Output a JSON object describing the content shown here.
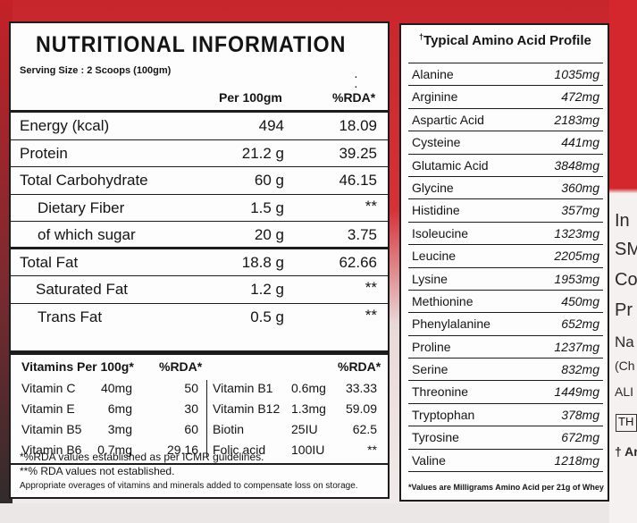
{
  "nutrition": {
    "title": "NUTRITIONAL INFORMATION",
    "serving": "Serving Size : 2 Scoops (100gm)",
    "dots": ". .",
    "col_per": "Per 100gm",
    "col_rda": "%RDA*",
    "rows": [
      {
        "name": "Energy (kcal)",
        "value": "494",
        "rda": "18.09"
      },
      {
        "name": "Protein",
        "value": "21.2 g",
        "rda": "39.25"
      },
      {
        "name": "Total Carbohydrate",
        "value": "60 g",
        "rda": "46.15"
      },
      {
        "name": "Dietary Fiber",
        "value": "1.5 g",
        "rda": "**"
      },
      {
        "name": "of which sugar",
        "value": "20 g",
        "rda": "3.75"
      },
      {
        "name": "Total Fat",
        "value": "18.8 g",
        "rda": "62.66"
      },
      {
        "name": "Saturated Fat",
        "value": "1.2 g",
        "rda": "**"
      },
      {
        "name": "Trans Fat",
        "value": "0.5 g",
        "rda": "**"
      }
    ]
  },
  "vitamins": {
    "header": "Vitamins Per 100g*",
    "rda_header_1": "%RDA*",
    "rda_header_2": "%RDA*",
    "rows": [
      {
        "n1": "Vitamin C",
        "a1": "40mg",
        "r1": "50",
        "n2": "Vitamin B1",
        "a2": "0.6mg",
        "r2": "33.33"
      },
      {
        "n1": "Vitamin E",
        "a1": "6mg",
        "r1": "30",
        "n2": "Vitamin B12",
        "a2": "1.3mg",
        "r2": "59.09"
      },
      {
        "n1": "Vitamin B5",
        "a1": "3mg",
        "r1": "60",
        "n2": "Biotin",
        "a2": "25IU",
        "r2": "62.5"
      },
      {
        "n1": "Vitamin B6",
        "a1": "0.7mg",
        "r1": "29.16",
        "n2": "Folic acid",
        "a2": "100IU",
        "r2": "**"
      }
    ]
  },
  "notes": {
    "n1": "*%RDA values established as per ICMR guidelines.",
    "n2": "**% RDA values not established.",
    "n3": "Appropriate overages of vitamins and minerals added to compensate loss on storage."
  },
  "amino": {
    "title_mark": "†",
    "title": "Typical Amino Acid Profile",
    "rows": [
      {
        "name": "Alanine",
        "value": "1035mg"
      },
      {
        "name": "Arginine",
        "value": "472mg"
      },
      {
        "name": "Aspartic Acid",
        "value": "2183mg"
      },
      {
        "name": "Cysteine",
        "value": "441mg"
      },
      {
        "name": "Glutamic Acid",
        "value": "3848mg"
      },
      {
        "name": "Glycine",
        "value": "360mg"
      },
      {
        "name": "Histidine",
        "value": "357mg"
      },
      {
        "name": "Isoleucine",
        "value": "1323mg"
      },
      {
        "name": "Leucine",
        "value": "2205mg"
      },
      {
        "name": "Lysine",
        "value": "1953mg"
      },
      {
        "name": "Methionine",
        "value": "450mg"
      },
      {
        "name": "Phenylalanine",
        "value": "652mg"
      },
      {
        "name": "Proline",
        "value": "1237mg"
      },
      {
        "name": "Serine",
        "value": "832mg"
      },
      {
        "name": "Threonine",
        "value": "1449mg"
      },
      {
        "name": "Tryptophan",
        "value": "378mg"
      },
      {
        "name": "Tyrosine",
        "value": "672mg"
      },
      {
        "name": "Valine",
        "value": "1218mg"
      }
    ],
    "footnote": "*Values are Milligrams Amino Acid per 21g of Whey"
  },
  "edge_text": [
    "In",
    "SM",
    "Co",
    "Pr",
    "Na",
    "(Ch",
    "ALI",
    "TH",
    "† Ar"
  ]
}
